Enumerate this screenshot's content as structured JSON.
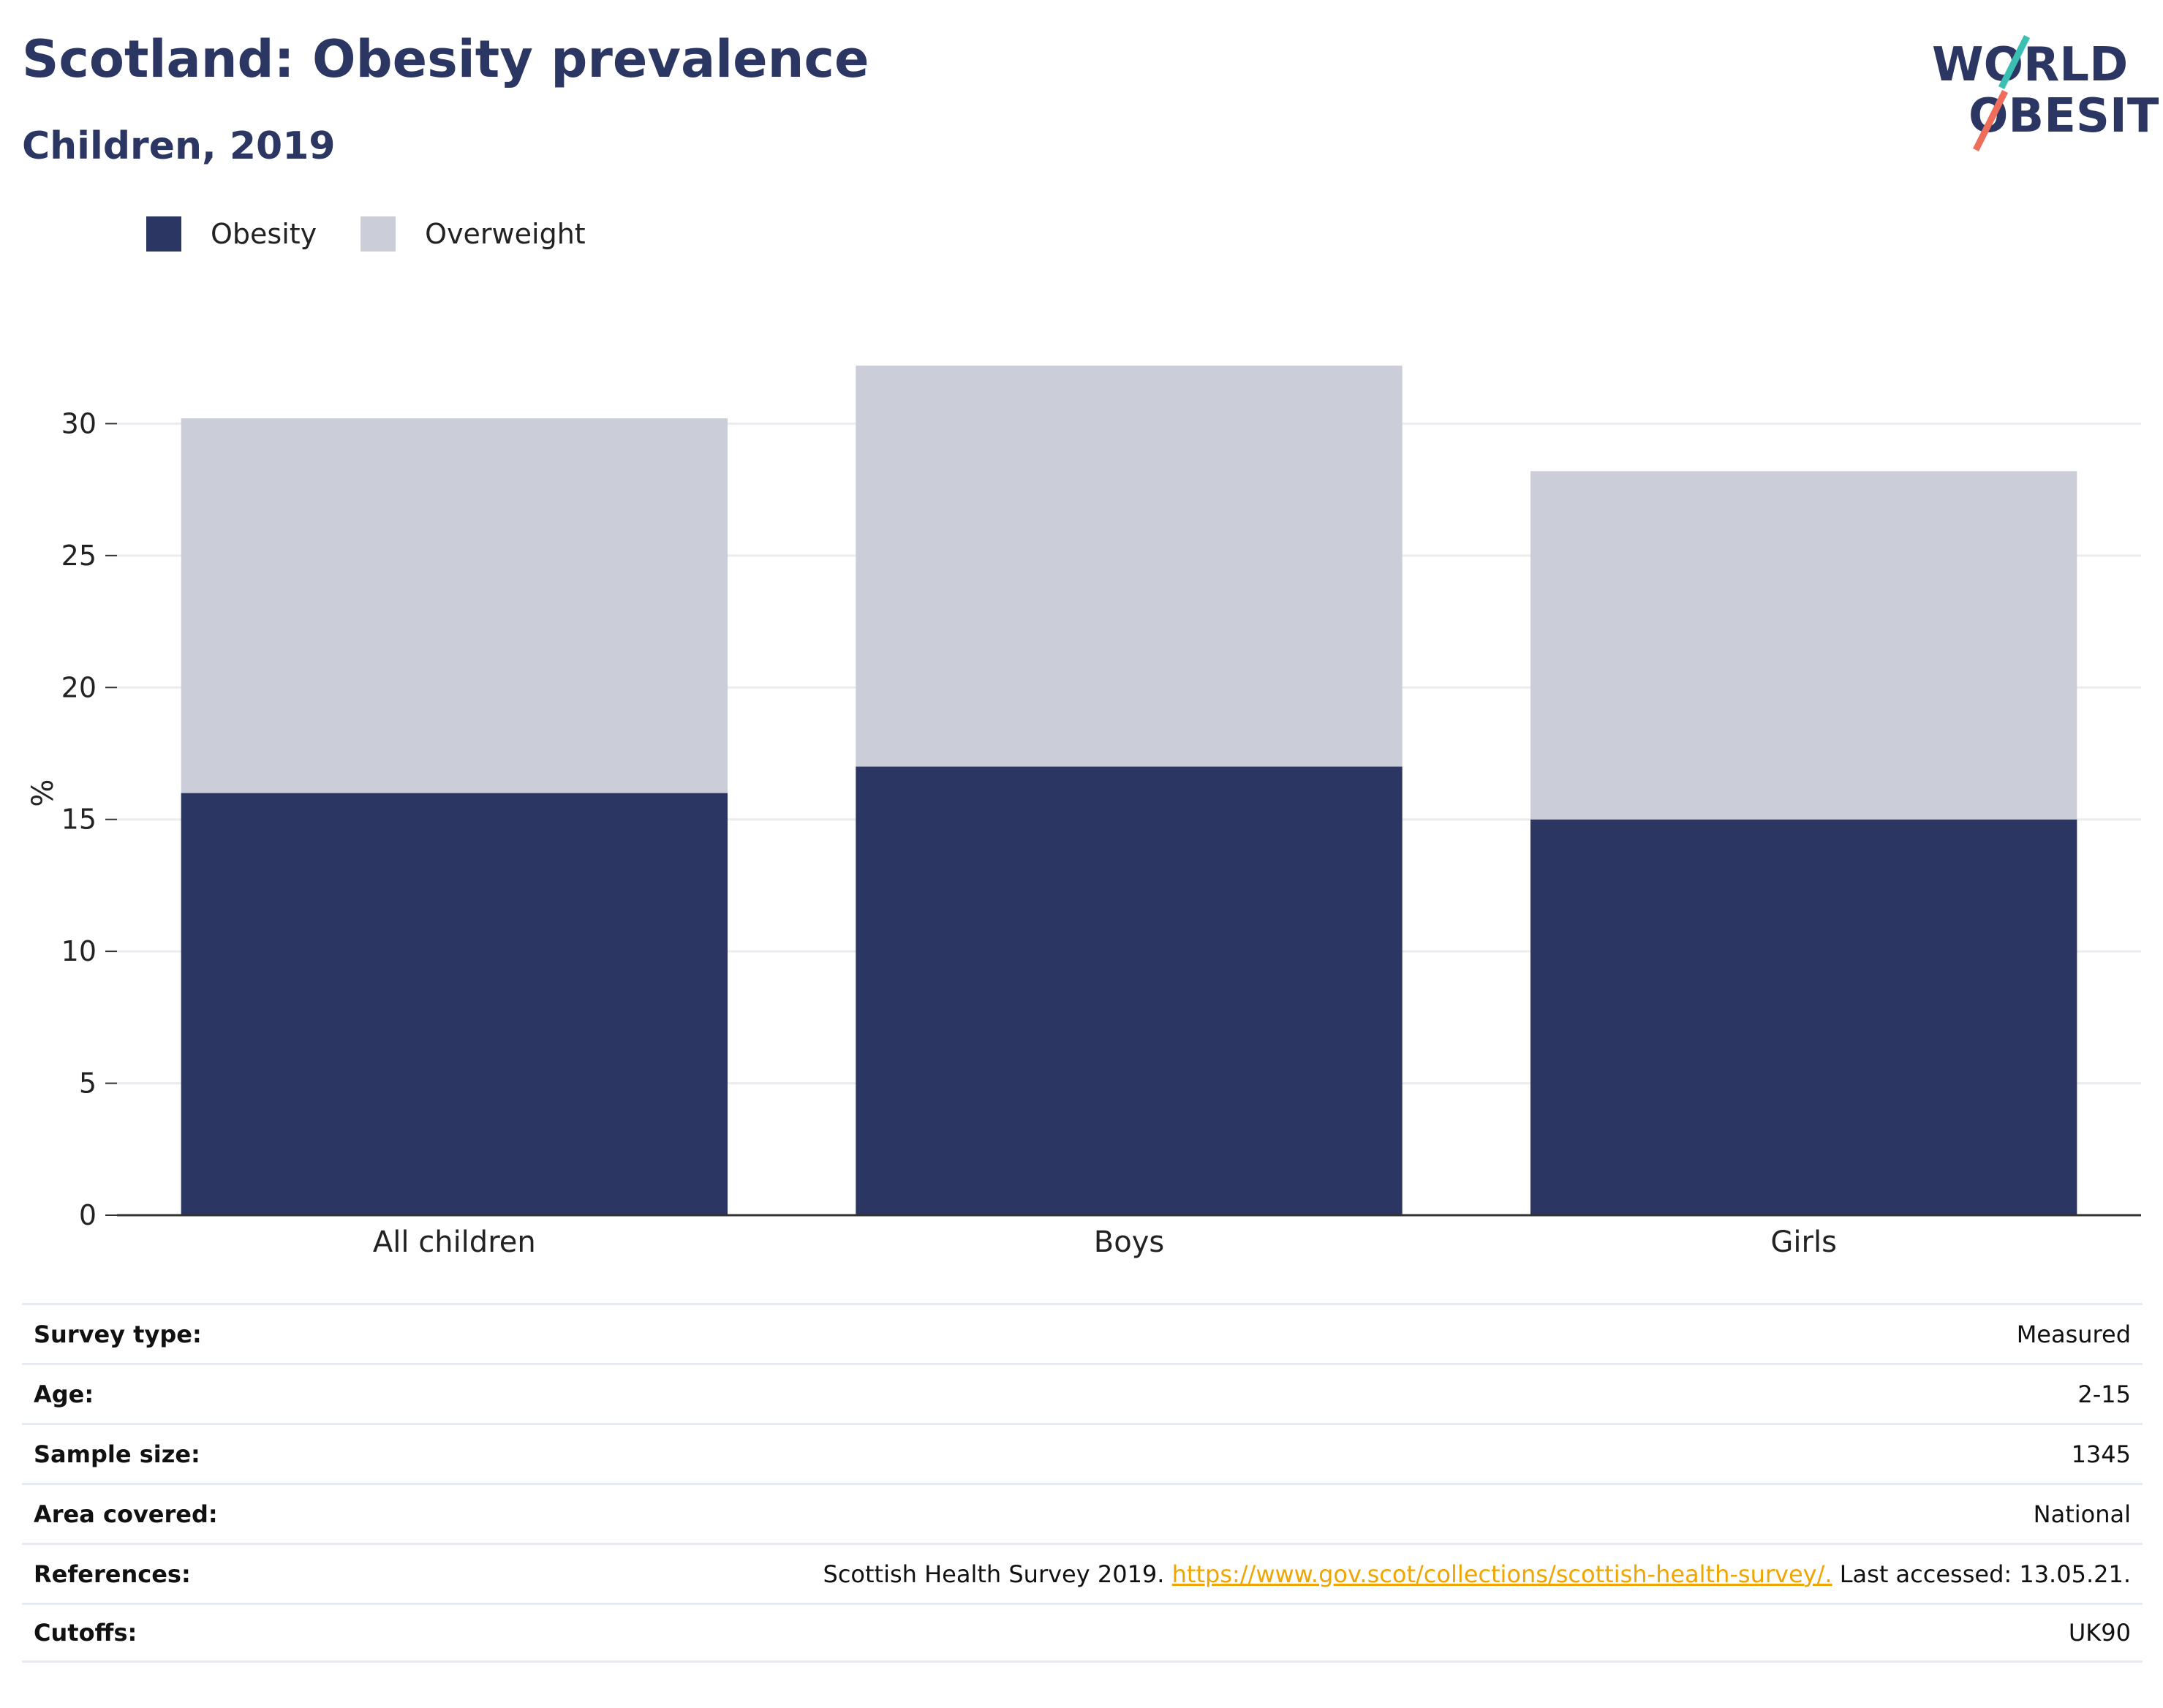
{
  "header": {
    "title": "Scotland: Obesity prevalence",
    "subtitle": "Children, 2019",
    "logo_text_line1": "WORLD",
    "logo_text_line2": "OBESITY"
  },
  "legend": [
    {
      "label": "Obesity",
      "color": "#2b3663"
    },
    {
      "label": "Overweight",
      "color": "#cbcdd8"
    }
  ],
  "chart_data": {
    "type": "bar",
    "stacked": true,
    "categories": [
      "All children",
      "Boys",
      "Girls"
    ],
    "series": [
      {
        "name": "Obesity",
        "color": "#2b3663",
        "values": [
          16,
          17,
          15
        ]
      },
      {
        "name": "Overweight",
        "color": "#cbcdd8",
        "values": [
          14.2,
          15.2,
          13.2
        ]
      }
    ],
    "ylabel": "%",
    "ylim": [
      0,
      32.2
    ],
    "yticks": [
      0,
      5,
      10,
      15,
      20,
      25,
      30
    ],
    "grid": true,
    "legend_position": "top-left"
  },
  "info": {
    "rows": [
      {
        "key": "Survey type:",
        "value": "Measured"
      },
      {
        "key": "Age:",
        "value": "2-15"
      },
      {
        "key": "Sample size:",
        "value": "1345"
      },
      {
        "key": "Area covered:",
        "value": "National"
      },
      {
        "key": "References:",
        "value_pre": "Scottish Health Survey 2019. ",
        "link": "https://www.gov.scot/collections/scottish-health-survey/.",
        "value_post": " Last accessed: 13.05.21."
      },
      {
        "key": "Cutoffs:",
        "value": "UK90"
      }
    ]
  }
}
